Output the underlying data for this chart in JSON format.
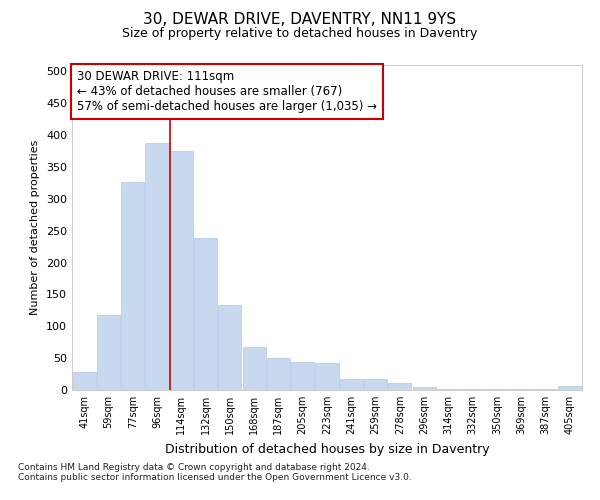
{
  "title": "30, DEWAR DRIVE, DAVENTRY, NN11 9YS",
  "subtitle": "Size of property relative to detached houses in Daventry",
  "xlabel": "Distribution of detached houses by size in Daventry",
  "ylabel": "Number of detached properties",
  "bar_color": "#c8d8ee",
  "bar_edge_color": "#b0c8e8",
  "categories": [
    "41sqm",
    "59sqm",
    "77sqm",
    "96sqm",
    "114sqm",
    "132sqm",
    "150sqm",
    "168sqm",
    "187sqm",
    "205sqm",
    "223sqm",
    "241sqm",
    "259sqm",
    "278sqm",
    "296sqm",
    "314sqm",
    "332sqm",
    "350sqm",
    "369sqm",
    "387sqm",
    "405sqm"
  ],
  "values": [
    28,
    118,
    327,
    388,
    375,
    239,
    133,
    67,
    50,
    44,
    42,
    17,
    17,
    11,
    5,
    2,
    1,
    1,
    1,
    1,
    7
  ],
  "vline_index": 4,
  "vline_color": "#cc0000",
  "ylim": [
    0,
    510
  ],
  "yticks": [
    0,
    50,
    100,
    150,
    200,
    250,
    300,
    350,
    400,
    450,
    500
  ],
  "annotation_line1": "30 DEWAR DRIVE: 111sqm",
  "annotation_line2": "← 43% of detached houses are smaller (767)",
  "annotation_line3": "57% of semi-detached houses are larger (1,035) →",
  "annotation_box_color": "white",
  "annotation_box_edge": "#cc0000",
  "footnote1": "Contains HM Land Registry data © Crown copyright and database right 2024.",
  "footnote2": "Contains public sector information licensed under the Open Government Licence v3.0.",
  "background_color": "#ffffff",
  "grid_color": "#ffffff",
  "title_fontsize": 11,
  "subtitle_fontsize": 9
}
